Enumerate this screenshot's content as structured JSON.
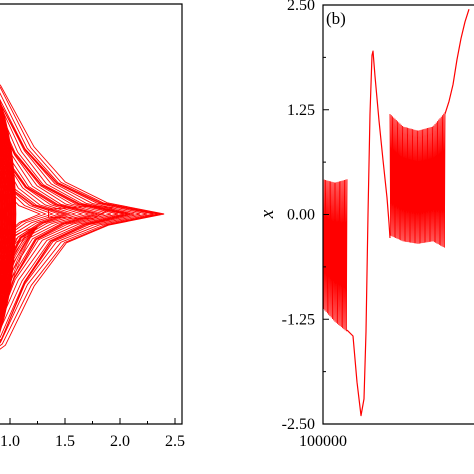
{
  "chart_data": [
    {
      "type": "line",
      "panel": "a",
      "description_visible": "phase portrait (partially cropped on the left)",
      "xlabel": "",
      "ylabel": "",
      "x_ticks": [
        "1.0",
        "1.5",
        "2.0",
        "2.5"
      ],
      "x_tick_values": [
        1.0,
        1.5,
        2.0,
        2.5
      ],
      "xlim": [
        0.55,
        2.5
      ],
      "ylim": [
        -1.25,
        1.25
      ],
      "grid": false,
      "line_color": "#ff0000",
      "series": [
        {
          "role": "outer_envelope",
          "points": [
            [
              0.6,
              1.07
            ],
            [
              0.9,
              0.8
            ],
            [
              1.2,
              0.42
            ],
            [
              1.5,
              0.2
            ],
            [
              1.9,
              0.07
            ],
            [
              2.42,
              0.0
            ],
            [
              1.9,
              -0.07
            ],
            [
              1.5,
              -0.18
            ],
            [
              1.2,
              -0.45
            ],
            [
              0.95,
              -0.82
            ],
            [
              0.6,
              -1.0
            ]
          ]
        },
        {
          "role": "inner_spike",
          "points": [
            [
              1.35,
              0.03
            ],
            [
              1.75,
              0.05
            ],
            [
              1.93,
              0.04
            ],
            [
              1.75,
              -0.03
            ],
            [
              1.35,
              -0.02
            ]
          ]
        },
        {
          "role": "small_loop",
          "points": [
            [
              0.91,
              0.1
            ],
            [
              0.99,
              0.0
            ],
            [
              0.91,
              -0.1
            ],
            [
              0.83,
              0.0
            ]
          ]
        }
      ]
    },
    {
      "type": "line",
      "panel": "b",
      "panel_label": "(b)",
      "description_visible": "time series of x (cropped on the right)",
      "xlabel": "",
      "ylabel": "x",
      "x_ticks": [
        "100000"
      ],
      "x_tick_values": [
        100000
      ],
      "y_ticks": [
        "2.50",
        "1.25",
        "0.00",
        "-1.25",
        "-2.50"
      ],
      "y_tick_values": [
        2.5,
        1.25,
        0.0,
        -1.25,
        -2.5
      ],
      "ylim": [
        -2.5,
        2.5
      ],
      "xlim": [
        100000,
        100155
      ],
      "grid": false,
      "line_color": "#ff0000",
      "segments": [
        {
          "role": "oscillating_band",
          "x_range": [
            100000,
            100024
          ],
          "upper": [
            [
              100000,
              0.42
            ],
            [
              100012,
              0.38
            ],
            [
              100024,
              0.42
            ]
          ],
          "lower": [
            [
              100000,
              -1.12
            ],
            [
              100012,
              -1.28
            ],
            [
              100024,
              -1.4
            ]
          ]
        },
        {
          "role": "slow_excursion",
          "points": [
            [
              100024,
              -1.38
            ],
            [
              100030,
              -1.45
            ],
            [
              100034,
              -2.0
            ],
            [
              100038,
              -2.4
            ],
            [
              100041,
              -2.2
            ],
            [
              100043,
              -1.4
            ],
            [
              100045,
              0.0
            ],
            [
              100047,
              1.2
            ],
            [
              100049,
              1.9
            ],
            [
              100050,
              1.95
            ],
            [
              100052,
              1.65
            ],
            [
              100056,
              1.12
            ],
            [
              100060,
              0.65
            ],
            [
              100064,
              0.2
            ],
            [
              100066,
              -0.1
            ],
            [
              100067,
              -0.28
            ]
          ]
        },
        {
          "role": "oscillating_band",
          "x_range": [
            100067,
            100122
          ],
          "upper": [
            [
              100067,
              1.2
            ],
            [
              100080,
              1.05
            ],
            [
              100095,
              1.0
            ],
            [
              100110,
              1.05
            ],
            [
              100122,
              1.22
            ]
          ],
          "lower": [
            [
              100067,
              -0.25
            ],
            [
              100080,
              -0.32
            ],
            [
              100095,
              -0.35
            ],
            [
              100110,
              -0.32
            ],
            [
              100122,
              -0.4
            ]
          ]
        },
        {
          "role": "slow_excursion",
          "points": [
            [
              100122,
              1.2
            ],
            [
              100126,
              1.35
            ],
            [
              100130,
              1.55
            ],
            [
              100134,
              1.85
            ],
            [
              100138,
              2.1
            ],
            [
              100142,
              2.3
            ],
            [
              100146,
              2.45
            ]
          ]
        }
      ]
    }
  ]
}
